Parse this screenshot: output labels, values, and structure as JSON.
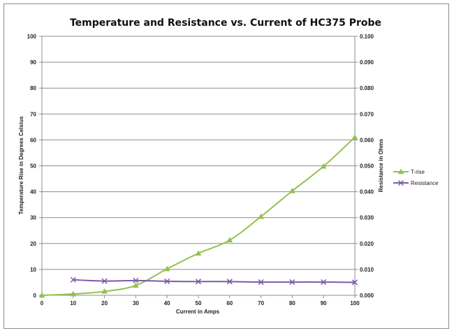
{
  "chart_data": {
    "type": "line",
    "title": "Temperature and Resistance vs. Current of HC375 Probe",
    "xlabel": "Current in Amps",
    "ylabel": "Temperature Rise in Degrees Celsius",
    "y2label": "Resistance in Ohms",
    "xlim": [
      0,
      100
    ],
    "ylim": [
      0,
      100
    ],
    "y2lim": [
      0,
      0.1
    ],
    "x_ticks": [
      0,
      10,
      20,
      30,
      40,
      50,
      60,
      70,
      80,
      90,
      100
    ],
    "y_ticks": [
      0,
      10,
      20,
      30,
      40,
      50,
      60,
      70,
      80,
      90,
      100
    ],
    "y2_ticks": [
      "0.000",
      "0.010",
      "0.020",
      "0.030",
      "0.040",
      "0.050",
      "0.060",
      "0.070",
      "0.080",
      "0.090",
      "0.100"
    ],
    "grid": true,
    "legend_position": "right",
    "series": [
      {
        "name": "T-rise",
        "axis": "left",
        "marker": "triangle",
        "color": "#92c050",
        "points": [
          [
            0,
            0
          ],
          [
            10,
            0.5
          ],
          [
            20,
            1.5
          ],
          [
            30,
            3.8
          ],
          [
            40,
            10.2
          ],
          [
            50,
            16.2
          ],
          [
            60,
            21.3
          ],
          [
            70,
            30.4
          ],
          [
            80,
            40.3
          ],
          [
            90,
            49.8
          ],
          [
            100,
            61.0
          ]
        ]
      },
      {
        "name": "Resistance",
        "axis": "right",
        "marker": "x",
        "color": "#7b5aa6",
        "points": [
          [
            10,
            0.006
          ],
          [
            20,
            0.0055
          ],
          [
            30,
            0.0057
          ],
          [
            40,
            0.0054
          ],
          [
            50,
            0.0053
          ],
          [
            60,
            0.0053
          ],
          [
            70,
            0.0051
          ],
          [
            80,
            0.0051
          ],
          [
            90,
            0.0051
          ],
          [
            100,
            0.005
          ]
        ]
      }
    ]
  }
}
